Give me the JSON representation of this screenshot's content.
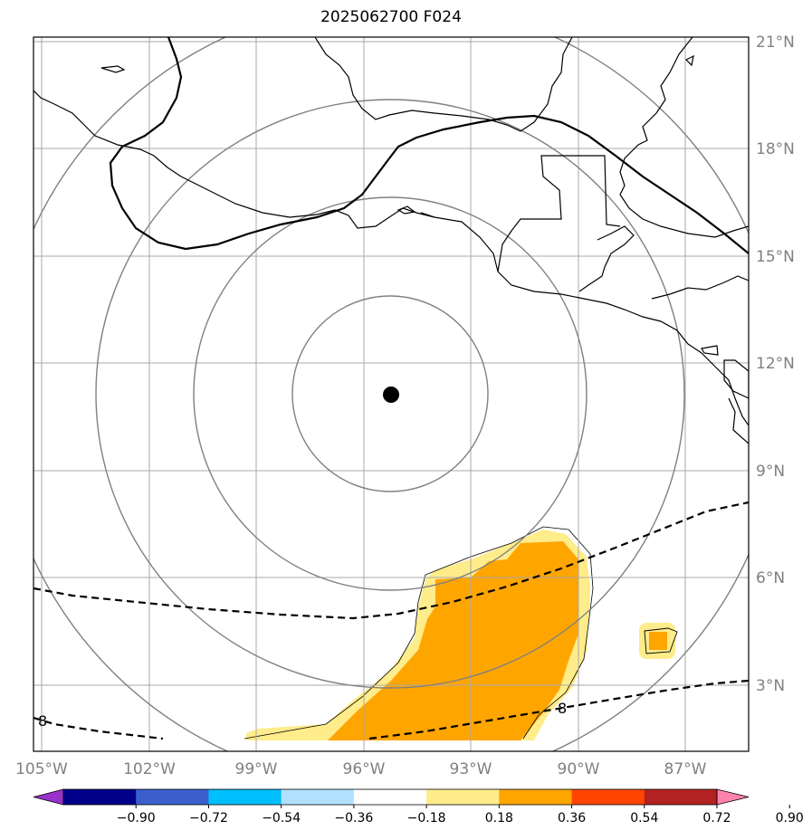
{
  "title": "2025062700 F024",
  "map": {
    "lon_range": [
      -105.5,
      -84.5
    ],
    "lat_range": [
      1.3,
      21.1
    ],
    "lat_ticks": [
      {
        "value": 21,
        "label": "21°N"
      },
      {
        "value": 18,
        "label": "18°N"
      },
      {
        "value": 15,
        "label": "15°N"
      },
      {
        "value": 12,
        "label": "12°N"
      },
      {
        "value": 9,
        "label": "9°N"
      },
      {
        "value": 6,
        "label": "6°N"
      },
      {
        "value": 3,
        "label": "3°N"
      }
    ],
    "lon_ticks": [
      {
        "value": -105,
        "label": "105°W"
      },
      {
        "value": -102,
        "label": "102°W"
      },
      {
        "value": -99,
        "label": "99°W"
      },
      {
        "value": -96,
        "label": "96°W"
      },
      {
        "value": -93,
        "label": "93°W"
      },
      {
        "value": -90,
        "label": "90°W"
      },
      {
        "value": -87,
        "label": "87°W"
      }
    ],
    "center_marker": {
      "lon": -95.7,
      "lat": 11.2
    },
    "range_rings_deg": [
      2.75,
      5.5,
      8.25,
      11.0
    ],
    "contour_labels": [
      {
        "text": "8",
        "lon": -105.2,
        "lat": 2.0
      },
      {
        "text": "8",
        "lon": -90.4,
        "lat": 2.2
      }
    ]
  },
  "colorbar": {
    "colors": [
      "#9932cc",
      "#00008b",
      "#3a5fcd",
      "#00bfff",
      "#b0e2ff",
      "#ffffff",
      "#ffec8b",
      "#ffa500",
      "#ff4500",
      "#b22222",
      "#ff82ab"
    ],
    "tick_labels": [
      "−0.90",
      "−0.72",
      "−0.54",
      "−0.36",
      "−0.18",
      "0.18",
      "0.36",
      "0.54",
      "0.72",
      "0.90"
    ]
  },
  "shading_colors": {
    "light": "#ffec8b",
    "orange": "#ffa500"
  }
}
